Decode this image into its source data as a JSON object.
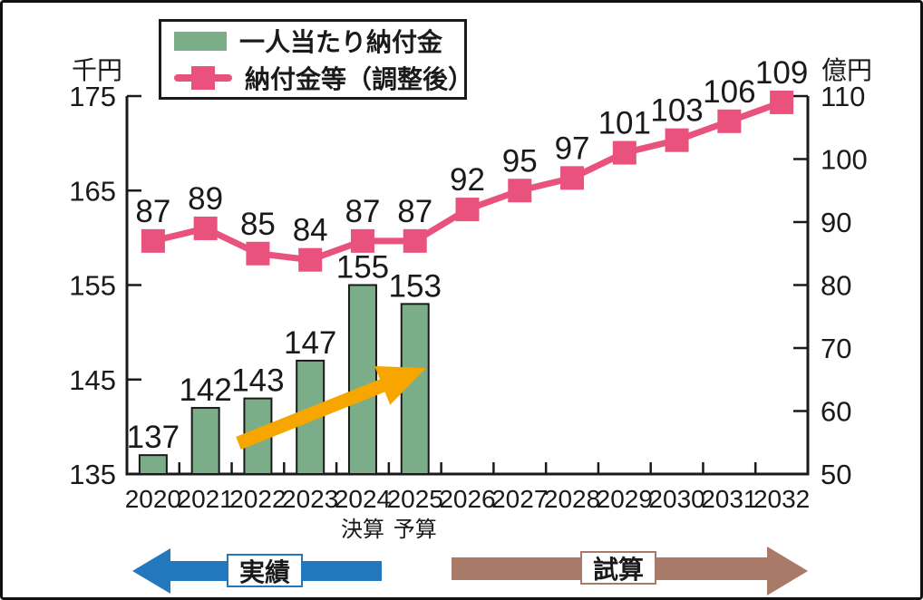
{
  "units": {
    "left": "千円",
    "right": "億円"
  },
  "legend": {
    "items": [
      {
        "label": "一人当たり納付金",
        "swatch": "bar",
        "color": "#7BAE88"
      },
      {
        "label": "納付金等（調整後）",
        "swatch": "line-marker",
        "color": "#E8527D"
      }
    ]
  },
  "chart_data": {
    "type": "bar+line",
    "categories": [
      "2020",
      "2021",
      "2022",
      "2023",
      "2024",
      "2025",
      "2026",
      "2027",
      "2028",
      "2029",
      "2030",
      "2031",
      "2032"
    ],
    "category_sublabels": [
      {
        "category": "2024",
        "label": "決算"
      },
      {
        "category": "2025",
        "label": "予算"
      }
    ],
    "series": [
      {
        "name": "一人当たり納付金",
        "type": "bar",
        "axis": "left",
        "color": "#7BAE88",
        "values": [
          137,
          142,
          143,
          147,
          155,
          153,
          null,
          null,
          null,
          null,
          null,
          null,
          null
        ]
      },
      {
        "name": "納付金等（調整後）",
        "type": "line",
        "axis": "right",
        "color": "#E8527D",
        "values": [
          87,
          89,
          85,
          84,
          87,
          87,
          92,
          95,
          97,
          101,
          103,
          106,
          109
        ]
      }
    ],
    "left_axis": {
      "unit": "千円",
      "min": 135,
      "max": 175,
      "ticks": [
        175,
        165,
        155,
        145,
        135
      ]
    },
    "right_axis": {
      "unit": "億円",
      "min": 50,
      "max": 110,
      "ticks": [
        110,
        100,
        90,
        80,
        70,
        60,
        50
      ]
    },
    "grid": false,
    "legend_position": "top-left"
  },
  "annotations": {
    "trend_arrow": {
      "from": [
        260,
        486
      ],
      "to": [
        467,
        403
      ],
      "color": "#F7A600"
    },
    "bottom_arrows": [
      {
        "label": "実績",
        "direction": "left",
        "color": "#2377BD"
      },
      {
        "label": "試算",
        "direction": "right",
        "color": "#A87A67"
      }
    ]
  }
}
